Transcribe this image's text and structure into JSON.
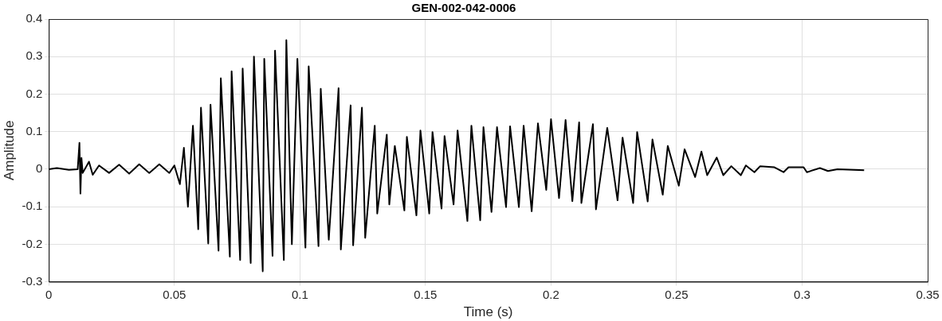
{
  "chart_data": {
    "type": "line",
    "title": "GEN-002-042-0006",
    "xlabel": "Time (s)",
    "ylabel": "Amplitude",
    "series": [
      {
        "color": "#000000",
        "x": [
          0,
          0.0032,
          0.008,
          0.0115,
          0.0122,
          0.0126,
          0.013,
          0.0135,
          0.016,
          0.0175,
          0.02,
          0.024,
          0.028,
          0.032,
          0.036,
          0.04,
          0.044,
          0.048,
          0.05,
          0.0522,
          0.0538,
          0.0554,
          0.0574,
          0.0595,
          0.0606,
          0.0635,
          0.0644,
          0.0676,
          0.0685,
          0.0721,
          0.0728,
          0.0762,
          0.0772,
          0.0804,
          0.0817,
          0.0852,
          0.0858,
          0.0891,
          0.0901,
          0.0936,
          0.0946,
          0.0968,
          0.099,
          0.1022,
          0.1035,
          0.1074,
          0.1083,
          0.1115,
          0.1154,
          0.1163,
          0.1202,
          0.1212,
          0.1247,
          0.126,
          0.1298,
          0.1308,
          0.1346,
          0.1356,
          0.1378,
          0.1416,
          0.1426,
          0.1464,
          0.148,
          0.1515,
          0.1528,
          0.1564,
          0.1576,
          0.1612,
          0.1628,
          0.1667,
          0.1683,
          0.1718,
          0.1731,
          0.1763,
          0.1785,
          0.1821,
          0.1837,
          0.1872,
          0.1891,
          0.1923,
          0.1948,
          0.1981,
          0.2,
          0.2032,
          0.2058,
          0.2085,
          0.2112,
          0.2121,
          0.2167,
          0.2179,
          0.2224,
          0.2265,
          0.2285,
          0.2327,
          0.2343,
          0.2385,
          0.2404,
          0.2445,
          0.2465,
          0.2509,
          0.2532,
          0.2574,
          0.2599,
          0.2622,
          0.266,
          0.2686,
          0.2718,
          0.2756,
          0.2776,
          0.281,
          0.2833,
          0.289,
          0.2926,
          0.2946,
          0.3006,
          0.3019,
          0.3071,
          0.3103,
          0.3141,
          0.3247
        ],
        "values": [
          0,
          0.003,
          -0.002,
          0,
          0.07,
          -0.065,
          0.03,
          -0.01,
          0.02,
          -0.015,
          0.01,
          -0.01,
          0.012,
          -0.012,
          0.013,
          -0.01,
          0.013,
          -0.01,
          0.01,
          -0.04,
          0.057,
          -0.1,
          0.116,
          -0.16,
          0.164,
          -0.198,
          0.172,
          -0.217,
          0.242,
          -0.233,
          0.261,
          -0.242,
          0.268,
          -0.25,
          0.3,
          -0.272,
          0.294,
          -0.231,
          0.316,
          -0.242,
          0.344,
          -0.2,
          0.294,
          -0.209,
          0.274,
          -0.205,
          0.214,
          -0.188,
          0.216,
          -0.214,
          0.17,
          -0.203,
          0.164,
          -0.183,
          0.116,
          -0.118,
          0.092,
          -0.094,
          0.062,
          -0.11,
          0.086,
          -0.123,
          0.103,
          -0.118,
          0.099,
          -0.105,
          0.088,
          -0.094,
          0.103,
          -0.138,
          0.116,
          -0.136,
          0.112,
          -0.114,
          0.112,
          -0.101,
          0.114,
          -0.101,
          0.116,
          -0.112,
          0.122,
          -0.055,
          0.133,
          -0.077,
          0.131,
          -0.085,
          0.125,
          -0.09,
          0.12,
          -0.107,
          0.11,
          -0.083,
          0.084,
          -0.09,
          0.099,
          -0.086,
          0.079,
          -0.068,
          0.062,
          -0.044,
          0.053,
          -0.021,
          0.047,
          -0.016,
          0.031,
          -0.016,
          0.008,
          -0.016,
          0.01,
          -0.008,
          0.008,
          0.005,
          -0.008,
          0.005,
          0.005,
          -0.008,
          0.003,
          -0.005,
          0,
          -0.003
        ]
      }
    ],
    "xlim": [
      0,
      0.35
    ],
    "xticks": [
      0,
      0.05,
      0.1,
      0.15,
      0.2,
      0.25,
      0.3,
      0.35
    ],
    "ylim": [
      -0.3,
      0.4
    ],
    "yticks": [
      -0.3,
      -0.2,
      -0.1,
      0,
      0.1,
      0.2,
      0.3,
      0.4
    ],
    "grid": true,
    "line_style": "solid"
  }
}
